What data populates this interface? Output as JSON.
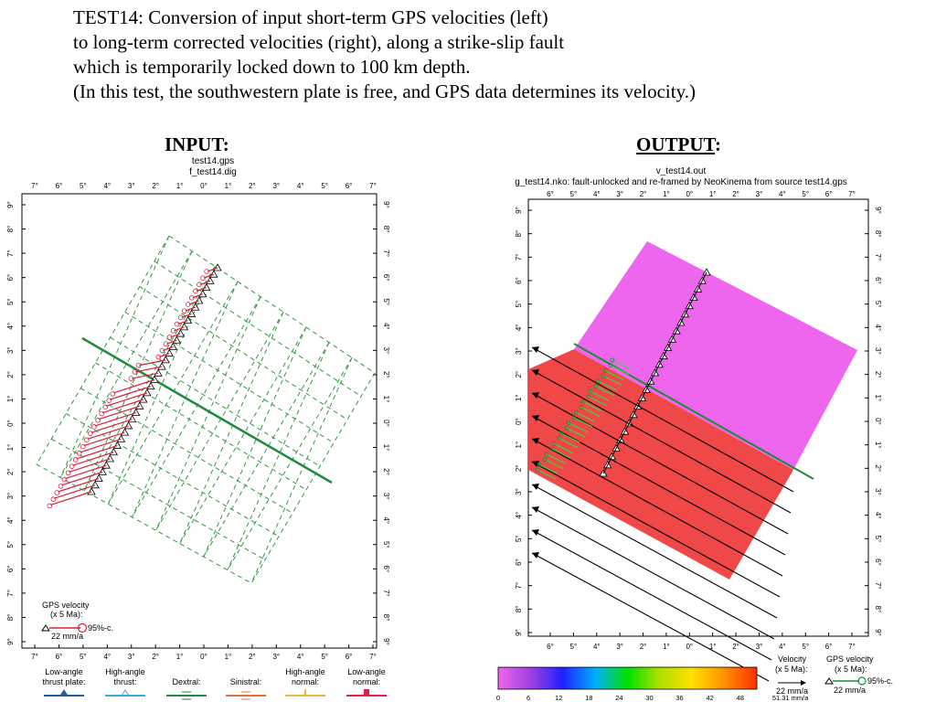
{
  "caption": {
    "line1": "TEST14: Conversion of input short-term GPS velocities (left)",
    "line2": "to long-term corrected velocities (right), along a strike-slip fault",
    "line3": "which is temporarily locked down to 100 km depth.",
    "line4": "(In this test, the southwestern plate is free, and GPS data determines its velocity.)"
  },
  "input_heading": "INPUT:",
  "output_heading": "OUTPUT",
  "output_heading_colon": ":",
  "left": {
    "title1": "test14.gps",
    "title2": "f_test14.dig",
    "top_ticks": [
      "7°",
      "6°",
      "5°",
      "4°",
      "3°",
      "2°",
      "1°",
      "0°",
      "1°",
      "2°",
      "3°",
      "4°",
      "5°",
      "6°",
      "7°"
    ],
    "side_ticks": [
      "9°",
      "8°",
      "7°",
      "6°",
      "5°",
      "4°",
      "3°",
      "2°",
      "1°",
      "0°",
      "1°",
      "2°",
      "3°",
      "4°",
      "5°",
      "6°",
      "7°",
      "8°",
      "9°"
    ],
    "legend": {
      "gps_title": "GPS velocity",
      "gps_scale": "(x 5 Ma):",
      "gps_conf": "95%-c.",
      "gps_rate": "22 mm/a"
    },
    "fault_legend": [
      {
        "label1": "Low-angle",
        "label2": "thrust plate:",
        "color": "#1f5fa0"
      },
      {
        "label1": "High-angle",
        "label2": "thrust:",
        "color": "#3fa9d8"
      },
      {
        "label1": "",
        "label2": "Dextral:",
        "color": "#1e8a3a"
      },
      {
        "label1": "",
        "label2": "Sinistral:",
        "color": "#e8703a"
      },
      {
        "label1": "High-angle",
        "label2": "normal:",
        "color": "#e8b83a"
      },
      {
        "label1": "Low-angle",
        "label2": "normal:",
        "color": "#e0204a"
      }
    ]
  },
  "right": {
    "title1": "v_test14.out",
    "title2": "g_test14.nko: fault-unlocked and re-framed by NeoKinema from source test14.gps",
    "top_ticks": [
      "6°",
      "5°",
      "4°",
      "3°",
      "2°",
      "1°",
      "0°",
      "1°",
      "2°",
      "3°",
      "4°",
      "5°",
      "6°",
      "7°"
    ],
    "side_ticks": [
      "9°",
      "8°",
      "7°",
      "6°",
      "5°",
      "4°",
      "3°",
      "2°",
      "1°",
      "0°",
      "1°",
      "2°",
      "3°",
      "4°",
      "5°",
      "6°",
      "7°",
      "8°",
      "9°"
    ],
    "colorbar_ticks": [
      "0",
      "6",
      "12",
      "18",
      "24",
      "30",
      "36",
      "42",
      "48",
      "51.31 mm/a"
    ],
    "velocity_legend": {
      "title": "Velocity",
      "scale": "(x 5 Ma):",
      "rate": "22 mm/a"
    },
    "gps_legend": {
      "title": "GPS velocity",
      "scale": "(x 5 Ma):",
      "conf": "95%-c.",
      "rate": "22 mm/a"
    }
  },
  "colors": {
    "grid_green": "#2e9a3e",
    "fault_green": "#1e8a3a",
    "gps_red": "#d8203a",
    "plate_magenta": "#ee66ee",
    "plate_red": "#f04848",
    "colorbar": [
      "#ee66ee",
      "#a040e0",
      "#2020ff",
      "#00b0ff",
      "#00e000",
      "#b0e000",
      "#ffe000",
      "#ff9000",
      "#ff3000"
    ]
  }
}
